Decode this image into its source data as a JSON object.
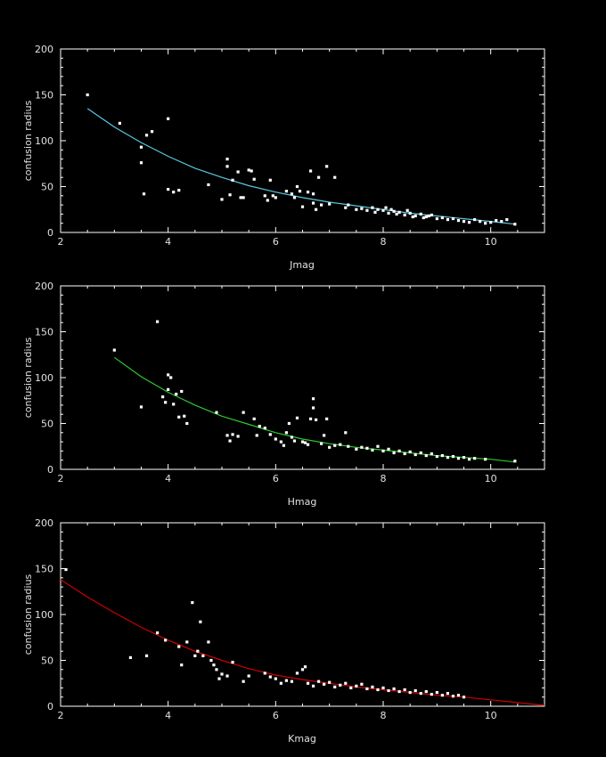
{
  "chart_data": [
    {
      "type": "scatter",
      "xlabel": "Jmag",
      "ylabel": "confusion radius",
      "xlim": [
        2,
        11
      ],
      "ylim": [
        0,
        200
      ],
      "xticks": [
        2,
        4,
        6,
        8,
        10
      ],
      "yticks": [
        0,
        50,
        100,
        150,
        200
      ],
      "fit_color": "#5cc8e0",
      "point_color": "#ffffff",
      "fit": {
        "x": [
          2.5,
          3.0,
          3.5,
          4.0,
          4.5,
          5.0,
          5.5,
          6.0,
          6.5,
          7.0,
          7.5,
          8.0,
          8.5,
          9.0,
          9.5,
          10.0,
          10.45
        ],
        "y": [
          135,
          115,
          98,
          83,
          70,
          60,
          51,
          44,
          38,
          33,
          29,
          25,
          21,
          18,
          15,
          12,
          9
        ]
      },
      "points": [
        [
          2.5,
          150
        ],
        [
          3.1,
          119
        ],
        [
          3.5,
          93
        ],
        [
          3.5,
          76
        ],
        [
          3.55,
          42
        ],
        [
          3.6,
          106
        ],
        [
          3.7,
          110
        ],
        [
          4.0,
          124
        ],
        [
          4.0,
          47
        ],
        [
          4.1,
          44
        ],
        [
          4.2,
          46
        ],
        [
          4.75,
          52
        ],
        [
          5.0,
          36
        ],
        [
          5.1,
          80
        ],
        [
          5.1,
          72
        ],
        [
          5.15,
          41
        ],
        [
          5.2,
          57
        ],
        [
          5.3,
          66
        ],
        [
          5.35,
          38
        ],
        [
          5.4,
          38
        ],
        [
          5.5,
          68
        ],
        [
          5.55,
          67
        ],
        [
          5.6,
          58
        ],
        [
          5.8,
          40
        ],
        [
          5.85,
          35
        ],
        [
          5.9,
          57
        ],
        [
          5.95,
          40
        ],
        [
          6.0,
          38
        ],
        [
          6.2,
          45
        ],
        [
          6.3,
          42
        ],
        [
          6.35,
          38
        ],
        [
          6.4,
          50
        ],
        [
          6.45,
          45
        ],
        [
          6.5,
          28
        ],
        [
          6.6,
          44
        ],
        [
          6.65,
          67
        ],
        [
          6.7,
          42
        ],
        [
          6.7,
          32
        ],
        [
          6.75,
          25
        ],
        [
          6.8,
          60
        ],
        [
          6.85,
          30
        ],
        [
          6.95,
          72
        ],
        [
          7.0,
          31
        ],
        [
          7.1,
          60
        ],
        [
          7.3,
          27
        ],
        [
          7.35,
          30
        ],
        [
          7.5,
          25
        ],
        [
          7.6,
          26
        ],
        [
          7.7,
          24
        ],
        [
          7.8,
          27
        ],
        [
          7.85,
          22
        ],
        [
          7.9,
          25
        ],
        [
          8.0,
          24
        ],
        [
          8.05,
          27
        ],
        [
          8.1,
          21
        ],
        [
          8.15,
          25
        ],
        [
          8.2,
          23
        ],
        [
          8.25,
          20
        ],
        [
          8.3,
          22
        ],
        [
          8.4,
          19
        ],
        [
          8.45,
          24
        ],
        [
          8.5,
          21
        ],
        [
          8.55,
          17
        ],
        [
          8.6,
          18
        ],
        [
          8.7,
          20
        ],
        [
          8.75,
          16
        ],
        [
          8.8,
          17
        ],
        [
          8.85,
          18
        ],
        [
          8.9,
          19
        ],
        [
          9.0,
          15
        ],
        [
          9.1,
          16
        ],
        [
          9.2,
          14
        ],
        [
          9.3,
          15
        ],
        [
          9.4,
          13
        ],
        [
          9.5,
          12
        ],
        [
          9.6,
          11
        ],
        [
          9.7,
          14
        ],
        [
          9.8,
          12
        ],
        [
          9.9,
          10
        ],
        [
          10.0,
          11
        ],
        [
          10.1,
          13
        ],
        [
          10.2,
          12
        ],
        [
          10.3,
          14
        ],
        [
          10.45,
          9
        ]
      ]
    },
    {
      "type": "scatter",
      "xlabel": "Hmag",
      "ylabel": "confusion radius",
      "xlim": [
        2,
        11
      ],
      "ylim": [
        0,
        200
      ],
      "xticks": [
        2,
        4,
        6,
        8,
        10
      ],
      "yticks": [
        0,
        50,
        100,
        150,
        200
      ],
      "fit_color": "#2ec82e",
      "point_color": "#ffffff",
      "fit": {
        "x": [
          3.0,
          3.5,
          4.0,
          4.5,
          5.0,
          5.5,
          6.0,
          6.5,
          7.0,
          7.5,
          8.0,
          8.5,
          9.0,
          9.5,
          10.0,
          10.45
        ],
        "y": [
          122,
          101,
          84,
          70,
          58,
          49,
          40,
          33,
          28,
          24,
          21,
          18,
          15,
          13,
          11,
          8
        ]
      },
      "points": [
        [
          3.0,
          130
        ],
        [
          3.5,
          68
        ],
        [
          3.8,
          161
        ],
        [
          3.9,
          79
        ],
        [
          3.95,
          73
        ],
        [
          4.0,
          87
        ],
        [
          4.0,
          103
        ],
        [
          4.05,
          100
        ],
        [
          4.1,
          71
        ],
        [
          4.15,
          82
        ],
        [
          4.2,
          57
        ],
        [
          4.25,
          85
        ],
        [
          4.3,
          58
        ],
        [
          4.35,
          50
        ],
        [
          4.9,
          62
        ],
        [
          5.1,
          37
        ],
        [
          5.15,
          31
        ],
        [
          5.2,
          38
        ],
        [
          5.3,
          36
        ],
        [
          5.4,
          62
        ],
        [
          5.6,
          55
        ],
        [
          5.65,
          37
        ],
        [
          5.7,
          47
        ],
        [
          5.8,
          45
        ],
        [
          5.9,
          38
        ],
        [
          6.0,
          33
        ],
        [
          6.1,
          30
        ],
        [
          6.15,
          26
        ],
        [
          6.2,
          40
        ],
        [
          6.25,
          50
        ],
        [
          6.3,
          35
        ],
        [
          6.35,
          31
        ],
        [
          6.4,
          56
        ],
        [
          6.5,
          30
        ],
        [
          6.55,
          29
        ],
        [
          6.6,
          27
        ],
        [
          6.65,
          55
        ],
        [
          6.7,
          67
        ],
        [
          6.7,
          77
        ],
        [
          6.75,
          54
        ],
        [
          6.85,
          28
        ],
        [
          6.9,
          37
        ],
        [
          6.95,
          55
        ],
        [
          7.0,
          24
        ],
        [
          7.1,
          26
        ],
        [
          7.2,
          27
        ],
        [
          7.3,
          40
        ],
        [
          7.35,
          25
        ],
        [
          7.5,
          22
        ],
        [
          7.6,
          24
        ],
        [
          7.7,
          23
        ],
        [
          7.8,
          21
        ],
        [
          7.9,
          25
        ],
        [
          8.0,
          20
        ],
        [
          8.1,
          22
        ],
        [
          8.2,
          18
        ],
        [
          8.3,
          20
        ],
        [
          8.4,
          17
        ],
        [
          8.5,
          19
        ],
        [
          8.6,
          16
        ],
        [
          8.7,
          18
        ],
        [
          8.8,
          15
        ],
        [
          8.9,
          17
        ],
        [
          9.0,
          14
        ],
        [
          9.1,
          15
        ],
        [
          9.2,
          13
        ],
        [
          9.3,
          14
        ],
        [
          9.4,
          12
        ],
        [
          9.5,
          13
        ],
        [
          9.6,
          11
        ],
        [
          9.7,
          12
        ],
        [
          9.9,
          11
        ],
        [
          10.45,
          9
        ]
      ]
    },
    {
      "type": "scatter",
      "xlabel": "Kmag",
      "ylabel": "confusion radius",
      "xlim": [
        2,
        11
      ],
      "ylim": [
        0,
        200
      ],
      "xticks": [
        2,
        4,
        6,
        8,
        10
      ],
      "yticks": [
        0,
        50,
        100,
        150,
        200
      ],
      "fit_color": "#d00000",
      "point_color": "#ffffff",
      "fit": {
        "x": [
          2.0,
          2.5,
          3.0,
          3.5,
          4.0,
          4.5,
          5.0,
          5.5,
          6.0,
          6.5,
          7.0,
          7.5,
          8.0,
          8.5,
          9.0,
          9.5,
          10.0,
          10.5,
          11.0
        ],
        "y": [
          138,
          119,
          102,
          86,
          72,
          60,
          50,
          41,
          34,
          29,
          25,
          21,
          18,
          15,
          12,
          10,
          7,
          4,
          1
        ]
      },
      "points": [
        [
          2.1,
          149
        ],
        [
          3.3,
          53
        ],
        [
          3.6,
          55
        ],
        [
          3.8,
          80
        ],
        [
          3.95,
          72
        ],
        [
          4.2,
          65
        ],
        [
          4.25,
          45
        ],
        [
          4.35,
          70
        ],
        [
          4.45,
          113
        ],
        [
          4.5,
          55
        ],
        [
          4.55,
          60
        ],
        [
          4.6,
          92
        ],
        [
          4.65,
          55
        ],
        [
          4.75,
          70
        ],
        [
          4.8,
          50
        ],
        [
          4.85,
          45
        ],
        [
          4.9,
          40
        ],
        [
          4.95,
          30
        ],
        [
          5.0,
          35
        ],
        [
          5.1,
          33
        ],
        [
          5.2,
          48
        ],
        [
          5.4,
          27
        ],
        [
          5.5,
          33
        ],
        [
          5.8,
          36
        ],
        [
          5.9,
          32
        ],
        [
          6.0,
          30
        ],
        [
          6.1,
          25
        ],
        [
          6.2,
          28
        ],
        [
          6.3,
          27
        ],
        [
          6.4,
          36
        ],
        [
          6.5,
          40
        ],
        [
          6.55,
          43
        ],
        [
          6.6,
          25
        ],
        [
          6.7,
          22
        ],
        [
          6.8,
          27
        ],
        [
          6.9,
          24
        ],
        [
          7.0,
          26
        ],
        [
          7.1,
          21
        ],
        [
          7.2,
          23
        ],
        [
          7.3,
          25
        ],
        [
          7.4,
          20
        ],
        [
          7.5,
          22
        ],
        [
          7.6,
          24
        ],
        [
          7.7,
          19
        ],
        [
          7.8,
          21
        ],
        [
          7.9,
          18
        ],
        [
          8.0,
          20
        ],
        [
          8.1,
          17
        ],
        [
          8.2,
          19
        ],
        [
          8.3,
          16
        ],
        [
          8.4,
          18
        ],
        [
          8.5,
          15
        ],
        [
          8.6,
          17
        ],
        [
          8.7,
          14
        ],
        [
          8.8,
          16
        ],
        [
          8.9,
          13
        ],
        [
          9.0,
          15
        ],
        [
          9.1,
          12
        ],
        [
          9.2,
          14
        ],
        [
          9.3,
          11
        ],
        [
          9.4,
          12
        ],
        [
          9.5,
          10
        ]
      ]
    }
  ]
}
